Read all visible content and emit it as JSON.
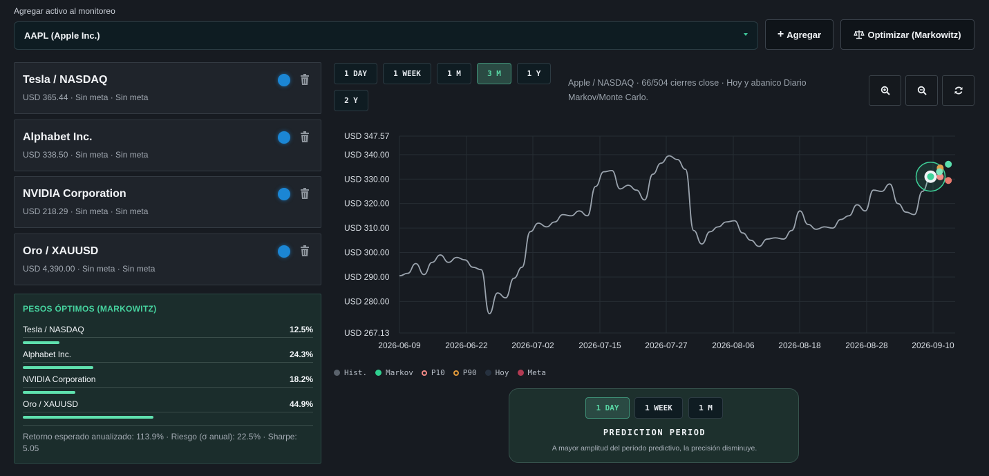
{
  "header": {
    "monitor_label": "Agregar activo al monitoreo",
    "selected_asset": "AAPL (Apple Inc.)",
    "add_button": "Agregar",
    "optimize_button": "Optimizar (Markowitz)"
  },
  "assets": [
    {
      "name": "Tesla / NASDAQ",
      "meta": "USD 365.44 · Sin meta · Sin meta"
    },
    {
      "name": "Alphabet Inc.",
      "meta": "USD 338.50 · Sin meta · Sin meta"
    },
    {
      "name": "NVIDIA Corporation",
      "meta": "USD 218.29 · Sin meta · Sin meta"
    },
    {
      "name": "Oro / XAUUSD",
      "meta": "USD 4,390.00 · Sin meta · Sin meta"
    }
  ],
  "markowitz": {
    "title": "PESOS ÓPTIMOS (MARKOWITZ)",
    "rows": [
      {
        "name": "Tesla / NASDAQ",
        "pct": "12.5%",
        "weight": 0.125
      },
      {
        "name": "Alphabet Inc.",
        "pct": "24.3%",
        "weight": 0.243
      },
      {
        "name": "NVIDIA Corporation",
        "pct": "18.2%",
        "weight": 0.182
      },
      {
        "name": "Oro / XAUUSD",
        "pct": "44.9%",
        "weight": 0.449
      }
    ],
    "summary": "Retorno esperado anualizado: 113.9% · Riesgo (σ anual): 22.5% · Sharpe: 5.05"
  },
  "ranges": {
    "buttons": [
      "1 DAY",
      "1 WEEK",
      "1 M",
      "3 M",
      "1 Y",
      "2 Y"
    ],
    "active": "3 M"
  },
  "chart_subtitle": "Apple / NASDAQ · 66/504 cierres close · Hoy y abanico Diario Markov/Monte Carlo.",
  "chart_controls": [
    "zoom-in-icon",
    "zoom-out-icon",
    "refresh-icon"
  ],
  "chart_data": {
    "type": "line",
    "y_ticks": [
      "USD 347.57",
      "USD 340.00",
      "USD 330.00",
      "USD 320.00",
      "USD 310.00",
      "USD 300.00",
      "USD 290.00",
      "USD 280.00",
      "USD 267.13"
    ],
    "x_ticks": [
      "2026-06-09",
      "2026-06-22",
      "2026-07-02",
      "2026-07-15",
      "2026-07-27",
      "2026-08-06",
      "2026-08-18",
      "2026-08-28",
      "2026-09-10"
    ],
    "ylim": [
      267.13,
      347.57
    ],
    "grid": true,
    "series": [
      {
        "name": "Hist.",
        "color": "#9aa3ad",
        "points": [
          [
            "2026-06-09",
            290.5
          ],
          [
            "2026-06-10",
            291.5
          ],
          [
            "2026-06-11",
            295.5
          ],
          [
            "2026-06-12",
            291.0
          ],
          [
            "2026-06-13",
            296.0
          ],
          [
            "2026-06-14",
            299.0
          ],
          [
            "2026-06-15",
            296.0
          ],
          [
            "2026-06-16",
            298.0
          ],
          [
            "2026-06-17",
            297.0
          ],
          [
            "2026-06-18",
            294.0
          ],
          [
            "2026-06-19",
            293.0
          ],
          [
            "2026-06-20",
            275.0
          ],
          [
            "2026-06-21",
            283.5
          ],
          [
            "2026-06-22",
            281.5
          ],
          [
            "2026-06-23",
            289.5
          ],
          [
            "2026-06-24",
            294.0
          ],
          [
            "2026-06-25",
            308.5
          ],
          [
            "2026-06-26",
            312.0
          ],
          [
            "2026-06-27",
            310.5
          ],
          [
            "2026-06-28",
            312.5
          ],
          [
            "2026-06-29",
            315.5
          ],
          [
            "2026-06-30",
            315.0
          ],
          [
            "2026-07-01",
            317.0
          ],
          [
            "2026-07-02",
            315.0
          ],
          [
            "2026-07-03",
            327.0
          ],
          [
            "2026-07-04",
            333.0
          ],
          [
            "2026-07-05",
            333.5
          ],
          [
            "2026-07-06",
            326.0
          ],
          [
            "2026-07-07",
            327.5
          ],
          [
            "2026-07-08",
            325.5
          ],
          [
            "2026-07-09",
            321.5
          ],
          [
            "2026-07-10",
            332.0
          ],
          [
            "2026-07-11",
            336.5
          ],
          [
            "2026-07-12",
            339.5
          ],
          [
            "2026-07-13",
            338.0
          ],
          [
            "2026-07-14",
            334.0
          ],
          [
            "2026-07-15",
            309.0
          ],
          [
            "2026-07-16",
            303.5
          ],
          [
            "2026-07-17",
            308.5
          ],
          [
            "2026-07-18",
            310.5
          ],
          [
            "2026-07-19",
            312.5
          ],
          [
            "2026-07-20",
            313.0
          ],
          [
            "2026-07-21",
            308.0
          ],
          [
            "2026-07-22",
            305.0
          ],
          [
            "2026-07-23",
            302.5
          ],
          [
            "2026-07-24",
            305.5
          ],
          [
            "2026-07-25",
            306.0
          ],
          [
            "2026-07-26",
            305.5
          ],
          [
            "2026-07-27",
            309.0
          ],
          [
            "2026-07-28",
            317.0
          ],
          [
            "2026-07-29",
            311.5
          ],
          [
            "2026-07-30",
            309.5
          ],
          [
            "2026-07-31",
            310.5
          ],
          [
            "2026-08-01",
            310.0
          ],
          [
            "2026-08-02",
            313.5
          ],
          [
            "2026-08-03",
            315.0
          ],
          [
            "2026-08-04",
            319.5
          ],
          [
            "2026-08-05",
            317.0
          ],
          [
            "2026-08-06",
            325.5
          ],
          [
            "2026-08-07",
            325.0
          ],
          [
            "2026-08-08",
            328.0
          ],
          [
            "2026-08-09",
            320.0
          ],
          [
            "2026-08-10",
            316.5
          ],
          [
            "2026-08-11",
            315.5
          ],
          [
            "2026-08-12",
            325.0
          ],
          [
            "2026-08-13",
            331.0
          ]
        ]
      },
      {
        "name": "Markov",
        "color": "#3fd39a",
        "points": [
          [
            "2026-08-14",
            333.0
          ]
        ]
      },
      {
        "name": "P10",
        "color": "#f28a86",
        "points": [
          [
            "2026-08-14",
            331.5
          ],
          [
            "2026-08-15",
            330.0
          ]
        ]
      },
      {
        "name": "P90",
        "color": "#e39b3a",
        "points": [
          [
            "2026-08-14",
            334.0
          ],
          [
            "2026-08-15",
            335.5
          ]
        ]
      },
      {
        "name": "Hoy",
        "color": "#2f3f52",
        "points": [
          [
            "2026-08-13",
            331.0
          ]
        ]
      },
      {
        "name": "Meta",
        "color": "#b23a52",
        "points": []
      }
    ]
  },
  "legend": [
    {
      "label": "Hist.",
      "color": "#5a626c",
      "style": "fill"
    },
    {
      "label": "Markov",
      "color": "#2fcf8f",
      "style": "fill"
    },
    {
      "label": "P10",
      "color": "#f28a86",
      "style": "ring"
    },
    {
      "label": "P90",
      "color": "#e39b3a",
      "style": "ring"
    },
    {
      "label": "Hoy",
      "color": "#26313f",
      "style": "fill"
    },
    {
      "label": "Meta",
      "color": "#b23a52",
      "style": "fill"
    }
  ],
  "prediction": {
    "buttons": [
      "1 DAY",
      "1 WEEK",
      "1 M"
    ],
    "active": "1 DAY",
    "title": "PREDICTION PERIOD",
    "note": "A mayor amplitud del período predictivo, la precisión disminuye."
  }
}
